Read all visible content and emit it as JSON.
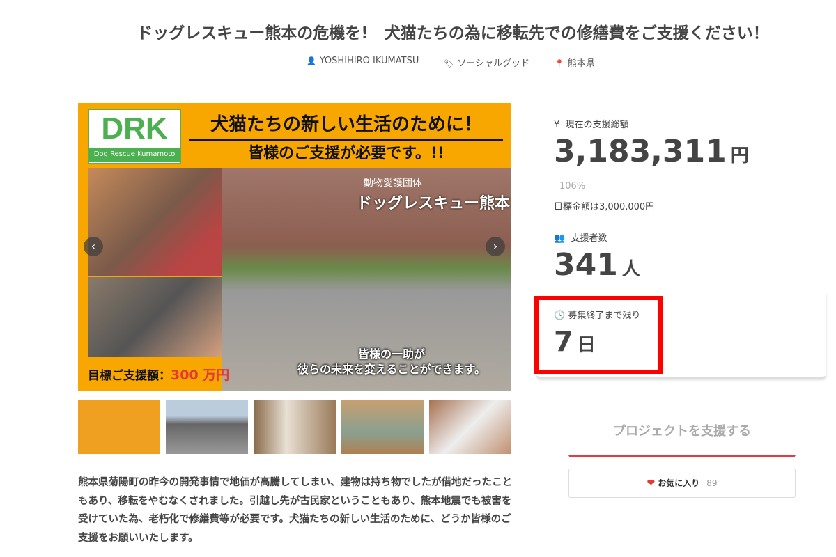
{
  "title": "ドッグレスキュー熊本の危機を!　犬猫たちの為に移転先での修繕費をご支援ください！",
  "meta": {
    "owner": "YOSHIHIRO IKUMATSU",
    "category": "ソーシャルグッド",
    "location": "熊本県",
    "icons": [
      "user-icon",
      "tag-icon",
      "map-pin-icon"
    ]
  },
  "hero": {
    "logo": "DRK",
    "logo_sub": "Dog Rescue Kumamoto",
    "headline1": "犬猫たちの新しい生活のために！",
    "headline2": "皆様のご支援が必要です。!!",
    "org_label": "動物愛護団体",
    "org_name": "ドッグレスキュー熊本",
    "caption1": "皆様の一助が",
    "caption2": "彼らの未来を変えることができます。",
    "goal_label": "目標ご支援額：",
    "goal_value": "300 万円",
    "prev": "‹",
    "next": "›"
  },
  "thumbnails": 5,
  "description": "熊本県菊陽町の昨今の開発事情で地価が高騰してしまい、建物は持ち物でしたが借地だったこともあり、移転をやむなくされました。引越し先が古民家ということもあり、熊本地震でも被害を受けていた為、老朽化で修繕費等が必要です。犬猫たちの新しい生活のために、どうか皆様のご支援をお願いいたします。",
  "stats": {
    "total_label": "現在の支援総額",
    "total_value": "3,183,311",
    "total_unit": "円",
    "percent": "106%",
    "goal_text": "目標金額は3,000,000円",
    "backers_label": "支援者数",
    "backers_value": "341",
    "backers_unit": "人",
    "remaining_label": "募集終了まで残り",
    "remaining_value": "7",
    "remaining_unit": "日"
  },
  "actions": {
    "support_label": "プロジェクトを支援する",
    "favorite_label": "お気に入り",
    "favorite_count": "89"
  },
  "colors": {
    "accent": "#e53945",
    "highlight": "#ff0000",
    "hero_bg": "#f7a700"
  }
}
